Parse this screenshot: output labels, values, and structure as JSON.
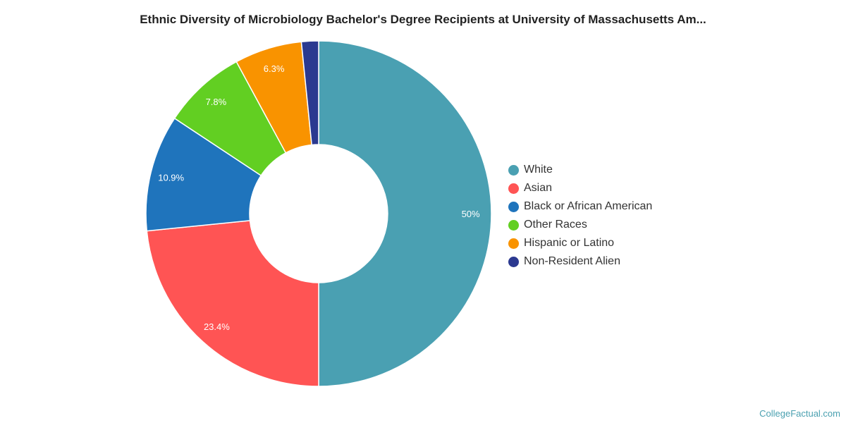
{
  "chart_data": {
    "type": "pie",
    "donut": true,
    "title": "Ethnic Diversity of Microbiology Bachelor's Degree Recipients at University of Massachusetts Am...",
    "legend_position": "right",
    "slices": [
      {
        "label": "White",
        "value": 50,
        "data_label": "50%",
        "color": "#4aa0b2"
      },
      {
        "label": "Asian",
        "value": 23.4,
        "data_label": "23.4%",
        "color": "#ff5454"
      },
      {
        "label": "Black or African American",
        "value": 10.9,
        "data_label": "10.9%",
        "color": "#1f74bc"
      },
      {
        "label": "Other Races",
        "value": 7.8,
        "data_label": "7.8%",
        "color": "#62cf22"
      },
      {
        "label": "Hispanic or Latino",
        "value": 6.3,
        "data_label": "6.3%",
        "color": "#f99300"
      },
      {
        "label": "Non-Resident Alien",
        "value": 1.6,
        "data_label": "",
        "color": "#2b3990"
      }
    ]
  },
  "credit": "CollegeFactual.com"
}
